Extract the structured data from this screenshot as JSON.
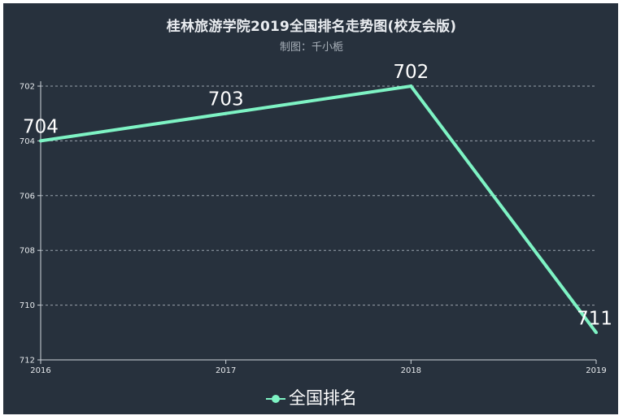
{
  "chart_data": {
    "type": "line",
    "title": "桂林旅游学院2019全国排名走势图(校友会版)",
    "subtitle": "制图：千小栀",
    "categories": [
      "2016",
      "2017",
      "2018",
      "2019"
    ],
    "series": [
      {
        "name": "全国排名",
        "values": [
          704,
          703,
          702,
          711
        ],
        "color": "#7ef3c4"
      }
    ],
    "y_inverse": true,
    "ylim": [
      702,
      712
    ],
    "yticks": [
      702,
      704,
      706,
      708,
      710,
      712
    ],
    "grid": true,
    "legend_position": "bottom",
    "background": "#27313d"
  }
}
